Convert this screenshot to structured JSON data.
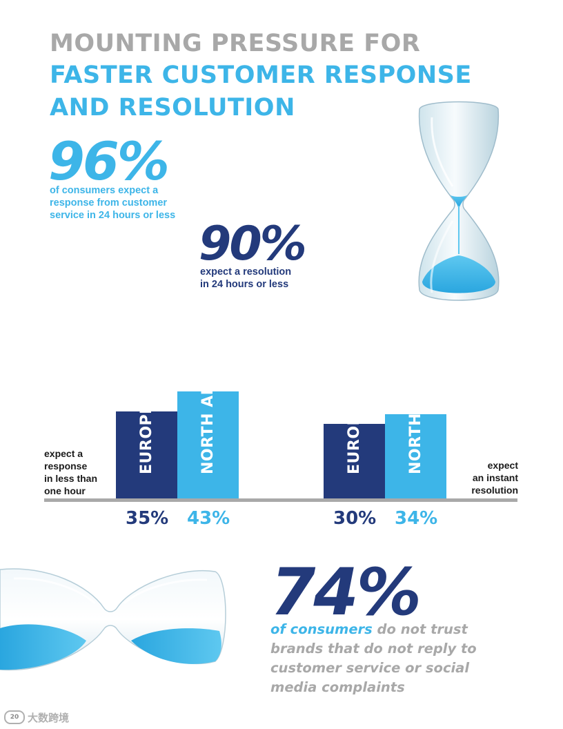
{
  "header": {
    "line1": "MOUNTING PRESSURE FOR",
    "line2": "FASTER CUSTOMER RESPONSE",
    "line3": "AND RESOLUTION"
  },
  "stats": {
    "stat1": {
      "value": "96%",
      "caption_line1": "of consumers expect a",
      "caption_line2": "response from customer",
      "caption_line3": "service in 24 hours or less"
    },
    "stat2": {
      "value": "90%",
      "caption_line1": "expect a resolution",
      "caption_line2": "in 24 hours or less"
    },
    "stat3": {
      "value": "74%",
      "caption_highlight": "of consumers",
      "caption_rest_line1": " do not trust",
      "caption_line2": "brands that do not reply to",
      "caption_line3": "customer service or social",
      "caption_line4": "media complaints"
    }
  },
  "colors": {
    "gray": "#a8a8a8",
    "light_blue": "#3db5e8",
    "dark_blue": "#233a7b",
    "axis_gray": "#a9a9a9"
  },
  "chart_data": [
    {
      "type": "bar",
      "group_label_lines": [
        "expect a",
        "response",
        "in less than",
        "one hour"
      ],
      "categories": [
        "EUROPE",
        "NORTH AMERICA"
      ],
      "values": [
        35,
        43
      ],
      "value_labels": [
        "35%",
        "43%"
      ],
      "colors": [
        "#233a7b",
        "#3db5e8"
      ]
    },
    {
      "type": "bar",
      "group_label_lines": [
        "expect",
        "an instant",
        "resolution"
      ],
      "categories": [
        "EUROPE",
        "NORTH AMERICA"
      ],
      "values": [
        30,
        34
      ],
      "value_labels": [
        "30%",
        "34%"
      ],
      "colors": [
        "#233a7b",
        "#3db5e8"
      ]
    }
  ],
  "watermark": {
    "badge": "20",
    "text": "大数跨境"
  },
  "icons": {
    "hourglass_upright": "hourglass-upright-icon",
    "hourglass_tilted": "hourglass-tilted-icon"
  }
}
